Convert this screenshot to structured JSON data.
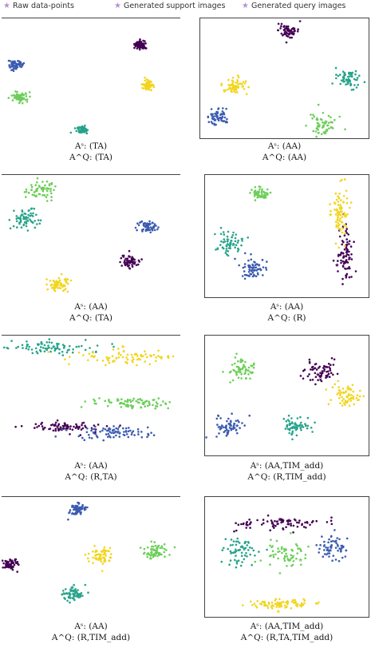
{
  "legend": {
    "items": [
      {
        "label": "Raw data-points",
        "color": "#b98fd6",
        "icon": "star-icon"
      },
      {
        "label": "Generated support images",
        "color": "#b98fd6",
        "icon": "star-icon"
      },
      {
        "label": "Generated query images",
        "color": "#b98fd6",
        "icon": "star-icon"
      }
    ]
  },
  "palette": {
    "purple": "#440154",
    "blue": "#3b5bb0",
    "teal": "#26a38a",
    "green": "#6cce59",
    "yellow": "#f2d51f"
  },
  "panels": [
    {
      "caption_line1": "Aˢ: (TA)",
      "caption_line2": "A^Q: (TA)"
    },
    {
      "caption_line1": "Aˢ: (AA)",
      "caption_line2": "A^Q: (AA)"
    },
    {
      "caption_line1": "Aˢ: (AA)",
      "caption_line2": "A^Q: (TA)"
    },
    {
      "caption_line1": "Aˢ: (AA)",
      "caption_line2": "A^Q: (R)"
    },
    {
      "caption_line1": "Aˢ: (AA)",
      "caption_line2": "A^Q: (R,TA)"
    },
    {
      "caption_line1": "Aˢ: (AA,TIM_add)",
      "caption_line2": "A^Q: (R,TIM_add)"
    },
    {
      "caption_line1": "Aˢ: (AA)",
      "caption_line2": "A^Q: (R,TIM_add)"
    },
    {
      "caption_line1": "Aˢ: (AA,TIM_add)",
      "caption_line2": "A^Q: (R,TA,TIM_add)"
    }
  ],
  "chart_data": {
    "type": "scatter",
    "description_visible": "t-SNE style embeddings of 5 classes per panel",
    "series_colors": [
      "#440154",
      "#3b5bb0",
      "#26a38a",
      "#6cce59",
      "#f2d51f"
    ],
    "panels": [
      {
        "clusters": [
          {
            "class": 0,
            "cx": 0.78,
            "cy": 0.22,
            "spread": 0.03,
            "shape": "blob"
          },
          {
            "class": 1,
            "cx": 0.08,
            "cy": 0.38,
            "spread": 0.035,
            "shape": "blob"
          },
          {
            "class": 2,
            "cx": 0.45,
            "cy": 0.92,
            "spread": 0.03,
            "shape": "blob"
          },
          {
            "class": 3,
            "cx": 0.1,
            "cy": 0.65,
            "spread": 0.035,
            "shape": "blob"
          },
          {
            "class": 4,
            "cx": 0.82,
            "cy": 0.55,
            "spread": 0.03,
            "shape": "blob"
          }
        ]
      },
      {
        "clusters": [
          {
            "class": 0,
            "cx": 0.52,
            "cy": 0.1,
            "spread": 0.05,
            "shape": "blob"
          },
          {
            "class": 1,
            "cx": 0.1,
            "cy": 0.8,
            "spread": 0.06,
            "shape": "blob"
          },
          {
            "class": 2,
            "cx": 0.88,
            "cy": 0.5,
            "spread": 0.06,
            "shape": "blob"
          },
          {
            "class": 3,
            "cx": 0.72,
            "cy": 0.88,
            "spread": 0.07,
            "shape": "blob"
          },
          {
            "class": 4,
            "cx": 0.2,
            "cy": 0.55,
            "spread": 0.06,
            "shape": "blob"
          }
        ]
      },
      {
        "clusters": [
          {
            "class": 0,
            "cx": 0.72,
            "cy": 0.7,
            "spread": 0.05,
            "shape": "blob"
          },
          {
            "class": 1,
            "cx": 0.82,
            "cy": 0.42,
            "spread": 0.04,
            "shape": "blob"
          },
          {
            "class": 2,
            "cx": 0.12,
            "cy": 0.35,
            "spread": 0.07,
            "shape": "blob"
          },
          {
            "class": 3,
            "cx": 0.22,
            "cy": 0.12,
            "spread": 0.07,
            "shape": "blob"
          },
          {
            "class": 4,
            "cx": 0.32,
            "cy": 0.88,
            "spread": 0.05,
            "shape": "blob"
          }
        ]
      },
      {
        "clusters": [
          {
            "class": 0,
            "cx": 0.85,
            "cy": 0.65,
            "spread": 0.08,
            "shape": "vstrip"
          },
          {
            "class": 1,
            "cx": 0.3,
            "cy": 0.75,
            "spread": 0.07,
            "shape": "blob"
          },
          {
            "class": 2,
            "cx": 0.15,
            "cy": 0.55,
            "spread": 0.07,
            "shape": "blob"
          },
          {
            "class": 3,
            "cx": 0.33,
            "cy": 0.15,
            "spread": 0.04,
            "shape": "blob"
          },
          {
            "class": 4,
            "cx": 0.82,
            "cy": 0.3,
            "spread": 0.08,
            "shape": "vstrip"
          }
        ]
      },
      {
        "clusters": [
          {
            "class": 0,
            "cx": 0.35,
            "cy": 0.75,
            "spread": 0.08,
            "shape": "hstrip"
          },
          {
            "class": 1,
            "cx": 0.62,
            "cy": 0.8,
            "spread": 0.08,
            "shape": "hstrip"
          },
          {
            "class": 2,
            "cx": 0.25,
            "cy": 0.1,
            "spread": 0.1,
            "shape": "hstrip"
          },
          {
            "class": 3,
            "cx": 0.72,
            "cy": 0.55,
            "spread": 0.08,
            "shape": "hstrip"
          },
          {
            "class": 4,
            "cx": 0.7,
            "cy": 0.18,
            "spread": 0.1,
            "shape": "hstrip"
          }
        ]
      },
      {
        "clusters": [
          {
            "class": 0,
            "cx": 0.7,
            "cy": 0.3,
            "spread": 0.1,
            "shape": "blob"
          },
          {
            "class": 1,
            "cx": 0.15,
            "cy": 0.75,
            "spread": 0.07,
            "shape": "blob"
          },
          {
            "class": 2,
            "cx": 0.55,
            "cy": 0.75,
            "spread": 0.07,
            "shape": "blob"
          },
          {
            "class": 3,
            "cx": 0.22,
            "cy": 0.28,
            "spread": 0.08,
            "shape": "blob"
          },
          {
            "class": 4,
            "cx": 0.85,
            "cy": 0.5,
            "spread": 0.07,
            "shape": "blob"
          }
        ]
      },
      {
        "clusters": [
          {
            "class": 0,
            "cx": 0.05,
            "cy": 0.55,
            "spread": 0.04,
            "shape": "blob"
          },
          {
            "class": 1,
            "cx": 0.42,
            "cy": 0.1,
            "spread": 0.04,
            "shape": "blob"
          },
          {
            "class": 2,
            "cx": 0.4,
            "cy": 0.8,
            "spread": 0.05,
            "shape": "blob"
          },
          {
            "class": 3,
            "cx": 0.85,
            "cy": 0.45,
            "spread": 0.06,
            "shape": "blob"
          },
          {
            "class": 4,
            "cx": 0.55,
            "cy": 0.48,
            "spread": 0.06,
            "shape": "blob"
          }
        ]
      },
      {
        "clusters": [
          {
            "class": 0,
            "cx": 0.45,
            "cy": 0.22,
            "spread": 0.1,
            "shape": "hstrip"
          },
          {
            "class": 1,
            "cx": 0.78,
            "cy": 0.42,
            "spread": 0.08,
            "shape": "blob"
          },
          {
            "class": 2,
            "cx": 0.22,
            "cy": 0.45,
            "spread": 0.1,
            "shape": "blob"
          },
          {
            "class": 3,
            "cx": 0.48,
            "cy": 0.48,
            "spread": 0.1,
            "shape": "blob"
          },
          {
            "class": 4,
            "cx": 0.45,
            "cy": 0.88,
            "spread": 0.07,
            "shape": "hstrip"
          }
        ]
      }
    ]
  }
}
